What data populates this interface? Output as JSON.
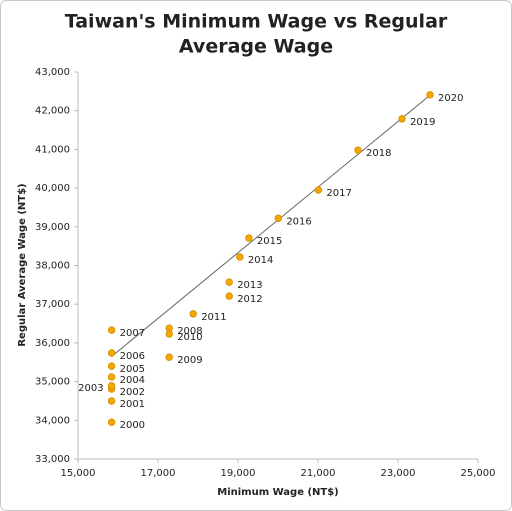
{
  "chart_data": {
    "type": "scatter",
    "title": [
      "Taiwan's Minimum Wage vs Regular",
      "Average Wage"
    ],
    "x_label": "Minimum Wage (NT$)",
    "y_label": "Regular Average Wage (NT$)",
    "labels": [
      "2000",
      "2001",
      "2002",
      "2003",
      "2004",
      "2005",
      "2006",
      "2007",
      "2008",
      "2009",
      "2010",
      "2011",
      "2012",
      "2013",
      "2014",
      "2015",
      "2016",
      "2017",
      "2018",
      "2019",
      "2020"
    ],
    "x": [
      15840,
      15840,
      15840,
      15840,
      15840,
      15840,
      15840,
      15840,
      17280,
      17280,
      17280,
      17880,
      18780,
      18780,
      19047,
      19273,
      20008,
      21009,
      22000,
      23100,
      23800
    ],
    "y": [
      33950,
      34500,
      34810,
      34890,
      35120,
      35400,
      35740,
      36330,
      36380,
      35630,
      36230,
      36750,
      37210,
      37570,
      38220,
      38710,
      39220,
      39950,
      40980,
      41790,
      42410
    ],
    "color": "#f5a800",
    "trendline": {
      "x": [
        15840,
        23800
      ],
      "y": [
        35650,
        42400
      ],
      "color": "#666666"
    },
    "xlim": [
      15000,
      25000
    ],
    "xticks": [
      {
        "value": 15000,
        "label": "15,000"
      },
      {
        "value": 17000,
        "label": "17,000"
      },
      {
        "value": 19000,
        "label": "19,000"
      },
      {
        "value": 21000,
        "label": "21,000"
      },
      {
        "value": 23000,
        "label": "23,000"
      },
      {
        "value": 25000,
        "label": "25,000"
      }
    ],
    "ylim": [
      33000,
      43000
    ],
    "yticks": [
      {
        "value": 33000,
        "label": "33,000"
      },
      {
        "value": 34000,
        "label": "34,000"
      },
      {
        "value": 35000,
        "label": "35,000"
      },
      {
        "value": 36000,
        "label": "36,000"
      },
      {
        "value": 37000,
        "label": "37,000"
      },
      {
        "value": 38000,
        "label": "38,000"
      },
      {
        "value": 39000,
        "label": "39,000"
      },
      {
        "value": 40000,
        "label": "40,000"
      },
      {
        "value": 41000,
        "label": "41,000"
      },
      {
        "value": 42000,
        "label": "42,000"
      },
      {
        "value": 43000,
        "label": "43,000"
      }
    ],
    "grid": false
  }
}
